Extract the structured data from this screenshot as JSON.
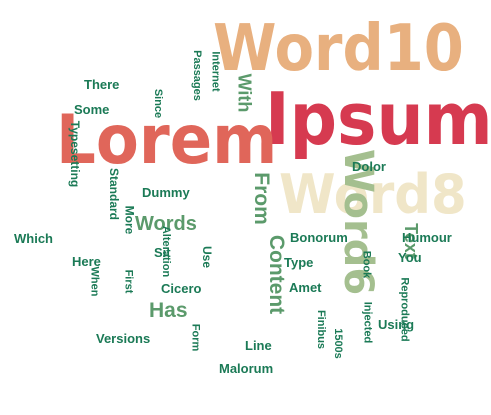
{
  "colors": {
    "Word10": "#e8b07f",
    "Ipsum": "#d63a50",
    "Lorem": "#e0665a",
    "Word8": "#f0e6c8",
    "Word6": "#a4bf8f",
    "green_mid": "#5b9a6b",
    "green_dark": "#1b7a56"
  },
  "words": {
    "word10": "Word10",
    "ipsum": "Ipsum",
    "lorem": "Lorem",
    "word8": "Word8",
    "word6": "Word6",
    "from": "From",
    "content": "Content",
    "words": "Words",
    "has": "Has",
    "text": "Text",
    "with": "With",
    "there": "There",
    "some": "Some",
    "passages": "Passages",
    "internet": "Internet",
    "since": "Since",
    "typesetting": "Typesetting",
    "standard": "Standard",
    "which": "Which",
    "here": "Here",
    "more": "More",
    "when": "When",
    "first": "First",
    "alteration": "Alteration",
    "dummy": "Dummy",
    "sit": "Sit",
    "use": "Use",
    "cicero": "Cicero",
    "dolor": "Dolor",
    "bonorum": "Bonorum",
    "type": "Type",
    "amet": "Amet",
    "book": "Book",
    "humour": "Humour",
    "you": "You",
    "reproduced": "Reproduced",
    "using": "Using",
    "injected": "Injected",
    "finibus": "Finibus",
    "1500s": "1500s",
    "line": "Line",
    "versions": "Versions",
    "form": "Form",
    "malorum": "Malorum"
  }
}
